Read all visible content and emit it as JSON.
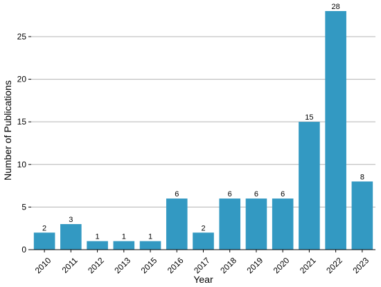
{
  "chart_data": {
    "type": "bar",
    "title": "",
    "xlabel": "Year",
    "ylabel": "Number of Publications",
    "categories": [
      "2010",
      "2011",
      "2012",
      "2013",
      "2015",
      "2016",
      "2017",
      "2018",
      "2019",
      "2020",
      "2021",
      "2022",
      "2023"
    ],
    "values": [
      2,
      3,
      1,
      1,
      1,
      6,
      2,
      6,
      6,
      6,
      15,
      28,
      8
    ],
    "data_labels": [
      "2",
      "3",
      "1",
      "1",
      "1",
      "6",
      "2",
      "6",
      "6",
      "6",
      "15",
      "28",
      "8"
    ],
    "ylim": [
      0,
      28
    ],
    "yticks": [
      0,
      5,
      10,
      15,
      20,
      25
    ],
    "ytick_labels": [
      "0",
      "5",
      "10",
      "15",
      "20",
      "25"
    ],
    "grid": "horizontal",
    "bar_color": "#3399c2",
    "grid_color": "#b3b3b3"
  }
}
